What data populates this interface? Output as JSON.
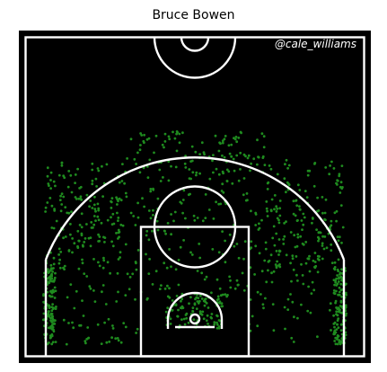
{
  "chart_data": {
    "type": "scatter",
    "title": "Bruce Bowen",
    "watermark": "@cale_williams",
    "xlabel": "",
    "ylabel": "",
    "xlim": [
      -250,
      250
    ],
    "ylim": [
      -47.5,
      422.5
    ],
    "grid": false,
    "colors": {
      "background": "#000000",
      "lines": "#ffffff",
      "shots": "#1f8b1f"
    },
    "clusters": [
      {
        "name": "left-corner",
        "x_range": [
          -238,
          -218
        ],
        "y_range": [
          -40,
          80
        ],
        "count": 140
      },
      {
        "name": "right-corner",
        "x_range": [
          218,
          238
        ],
        "y_range": [
          -40,
          80
        ],
        "count": 140
      },
      {
        "name": "restricted-area",
        "x_range": [
          -45,
          45
        ],
        "y_range": [
          -15,
          40
        ],
        "count": 110
      },
      {
        "name": "left-wing-three",
        "x_range": [
          -235,
          -110
        ],
        "y_range": [
          80,
          250
        ],
        "count": 140
      },
      {
        "name": "right-wing-three",
        "x_range": [
          110,
          235
        ],
        "y_range": [
          80,
          250
        ],
        "count": 140
      },
      {
        "name": "top-of-key-three",
        "x_range": [
          -110,
          110
        ],
        "y_range": [
          230,
          300
        ],
        "count": 110
      },
      {
        "name": "left-midrange",
        "x_range": [
          -215,
          -85
        ],
        "y_range": [
          -40,
          200
        ],
        "count": 110
      },
      {
        "name": "right-midrange",
        "x_range": [
          85,
          215
        ],
        "y_range": [
          -40,
          200
        ],
        "count": 110
      },
      {
        "name": "paint-and-elbows",
        "x_range": [
          -85,
          85
        ],
        "y_range": [
          30,
          230
        ],
        "count": 140
      }
    ]
  }
}
